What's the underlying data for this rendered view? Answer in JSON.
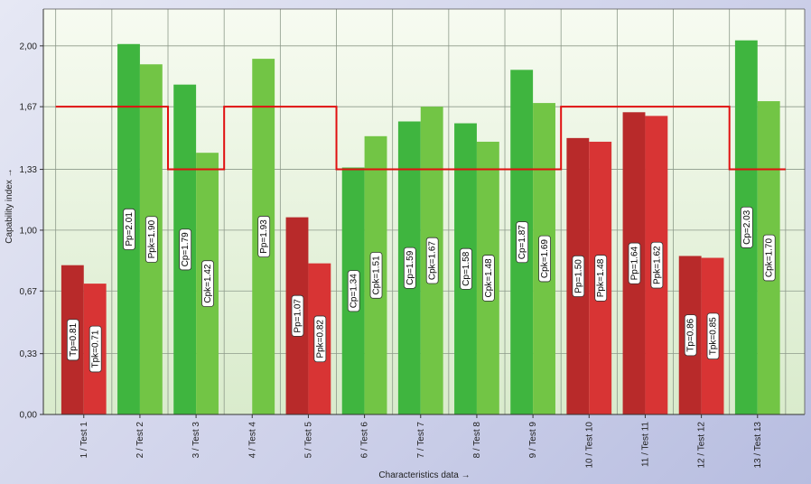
{
  "chart_data": {
    "type": "bar",
    "xlabel": "Characteristics data →",
    "ylabel": "Capability index →",
    "ylim": [
      0,
      2.2
    ],
    "yticks": [
      0,
      0.33,
      0.67,
      1.0,
      1.33,
      1.67,
      2.0
    ],
    "ytick_labels": [
      "0,00",
      "0,33",
      "0,67",
      "1,00",
      "1,33",
      "1,67",
      "2,00"
    ],
    "grid": true,
    "colors": {
      "green_first": "#3fb53f",
      "green_second": "#72c545",
      "red_first": "#b82a2a",
      "red_second": "#d83434",
      "limit_line": "#e01010",
      "plot_bg_top": "#f7fbf1",
      "plot_bg_bottom": "#d9ebcc"
    },
    "categories": [
      "1 / Test 1",
      "2 / Test 2",
      "3 / Test 3",
      "4 / Test 4",
      "5 / Test 5",
      "6 / Test 6",
      "7 / Test 7",
      "8 / Test 8",
      "9 / Test 9",
      "10 / Test 10",
      "11 / Test 11",
      "12 / Test 12",
      "13 / Test 13"
    ],
    "groups": [
      {
        "bars": [
          {
            "value": 0.81,
            "label": "Tp=0.81",
            "color": "red"
          },
          {
            "value": 0.71,
            "label": "Tpk=0.71",
            "color": "red"
          }
        ]
      },
      {
        "bars": [
          {
            "value": 2.01,
            "label": "Pp=2.01",
            "color": "green"
          },
          {
            "value": 1.9,
            "label": "Ppk=1.90",
            "color": "green"
          }
        ]
      },
      {
        "bars": [
          {
            "value": 1.79,
            "label": "Cp=1.79",
            "color": "green"
          },
          {
            "value": 1.42,
            "label": "Cpk=1.42",
            "color": "green"
          }
        ]
      },
      {
        "bars": [
          {
            "value": null,
            "label": "",
            "color": "green"
          },
          {
            "value": 1.93,
            "label": "Pp=1.93",
            "color": "green"
          }
        ]
      },
      {
        "bars": [
          {
            "value": 1.07,
            "label": "Pp=1.07",
            "color": "red"
          },
          {
            "value": 0.82,
            "label": "Ppk=0.82",
            "color": "red"
          }
        ]
      },
      {
        "bars": [
          {
            "value": 1.34,
            "label": "Cp=1.34",
            "color": "green"
          },
          {
            "value": 1.51,
            "label": "Cpk=1.51",
            "color": "green"
          }
        ]
      },
      {
        "bars": [
          {
            "value": 1.59,
            "label": "Cp=1.59",
            "color": "green"
          },
          {
            "value": 1.67,
            "label": "Cpk=1.67",
            "color": "green"
          }
        ]
      },
      {
        "bars": [
          {
            "value": 1.58,
            "label": "Cp=1.58",
            "color": "green"
          },
          {
            "value": 1.48,
            "label": "Cpk=1.48",
            "color": "green"
          }
        ]
      },
      {
        "bars": [
          {
            "value": 1.87,
            "label": "Cp=1.87",
            "color": "green"
          },
          {
            "value": 1.69,
            "label": "Cpk=1.69",
            "color": "green"
          }
        ]
      },
      {
        "bars": [
          {
            "value": 1.5,
            "label": "Pp=1.50",
            "color": "red"
          },
          {
            "value": 1.48,
            "label": "Ppk=1.48",
            "color": "red"
          }
        ]
      },
      {
        "bars": [
          {
            "value": 1.64,
            "label": "Pp=1.64",
            "color": "red"
          },
          {
            "value": 1.62,
            "label": "Ppk=1.62",
            "color": "red"
          }
        ]
      },
      {
        "bars": [
          {
            "value": 0.86,
            "label": "Tp=0.86",
            "color": "red"
          },
          {
            "value": 0.85,
            "label": "Tpk=0.85",
            "color": "red"
          }
        ]
      },
      {
        "bars": [
          {
            "value": 2.03,
            "label": "Cp=2.03",
            "color": "green"
          },
          {
            "value": 1.7,
            "label": "Cpk=1.70",
            "color": "green"
          }
        ]
      }
    ],
    "limit_line": [
      1.67,
      1.67,
      1.33,
      1.67,
      1.67,
      1.33,
      1.33,
      1.33,
      1.33,
      1.67,
      1.67,
      1.67,
      1.33
    ]
  }
}
